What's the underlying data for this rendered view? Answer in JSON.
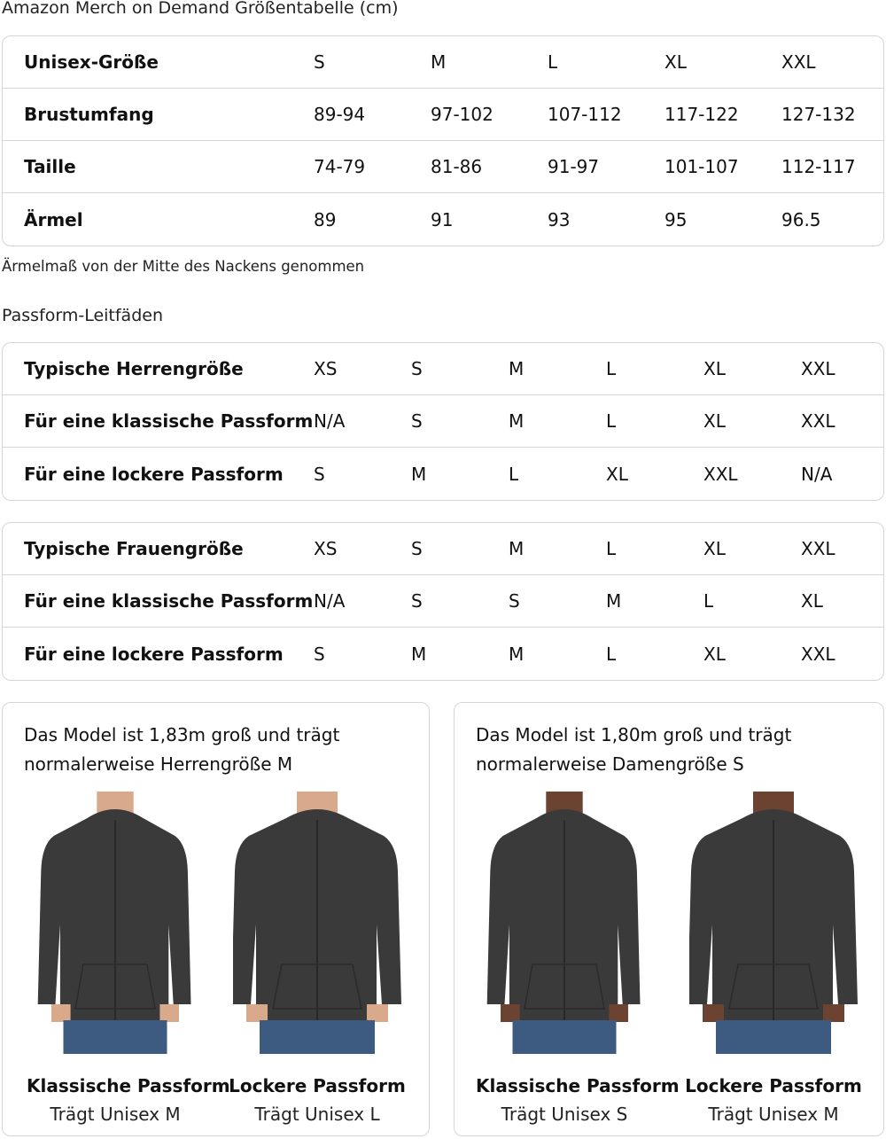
{
  "title": "Amazon Merch on Demand Größentabelle (cm)",
  "size_table": {
    "rows": [
      {
        "label": "Unisex-Größe",
        "values": [
          "S",
          "M",
          "L",
          "XL",
          "XXL"
        ]
      },
      {
        "label": "Brustumfang",
        "values": [
          "89-94",
          "97-102",
          "107-112",
          "117-122",
          "127-132"
        ]
      },
      {
        "label": "Taille",
        "values": [
          "74-79",
          "81-86",
          "91-97",
          "101-107",
          "112-117"
        ]
      },
      {
        "label": "Ärmel",
        "values": [
          "89",
          "91",
          "93",
          "95",
          "96.5"
        ]
      }
    ]
  },
  "note": "Ärmelmaß von der Mitte des Nackens genommen",
  "fit_heading": "Passform-Leitfäden",
  "men_table": {
    "rows": [
      {
        "label": "Typische Herrengröße",
        "values": [
          "XS",
          "S",
          "M",
          "L",
          "XL",
          "XXL"
        ]
      },
      {
        "label": "Für eine klassische Passform",
        "values": [
          "N/A",
          "S",
          "M",
          "L",
          "XL",
          "XXL"
        ]
      },
      {
        "label": "Für eine lockere Passform",
        "values": [
          "S",
          "M",
          "L",
          "XL",
          "XXL",
          "N/A"
        ]
      }
    ]
  },
  "women_table": {
    "rows": [
      {
        "label": "Typische Frauengröße",
        "values": [
          "XS",
          "S",
          "M",
          "L",
          "XL",
          "XXL"
        ]
      },
      {
        "label": "Für eine klassische Passform",
        "values": [
          "N/A",
          "S",
          "S",
          "M",
          "L",
          "XL"
        ]
      },
      {
        "label": "Für eine lockere Passform",
        "values": [
          "S",
          "M",
          "M",
          "L",
          "XL",
          "XXL"
        ]
      }
    ]
  },
  "cards": [
    {
      "caption": "Das Model ist 1,83m groß und trägt normalerweise Herrengröße M",
      "figures": [
        {
          "title": "Klassische Passform",
          "sub": "Trägt Unisex M"
        },
        {
          "title": "Lockere Passform",
          "sub": "Trägt Unisex L"
        }
      ]
    },
    {
      "caption": "Das Model ist 1,80m groß und trägt normalerweise Damengröße S",
      "figures": [
        {
          "title": "Klassische Passform",
          "sub": "Trägt Unisex S"
        },
        {
          "title": "Lockere Passform",
          "sub": "Trägt Unisex M"
        }
      ]
    }
  ],
  "colors": {
    "hoodie": "#3a3a3a",
    "border": "#d5d5d5",
    "jeans": "#3d5a80"
  }
}
